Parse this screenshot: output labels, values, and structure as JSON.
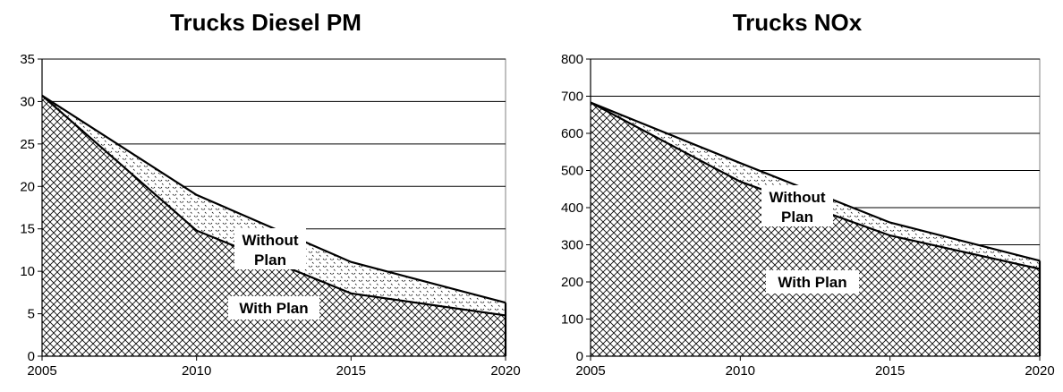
{
  "chart_data": [
    {
      "type": "area",
      "title": "Trucks Diesel PM",
      "x": [
        2005,
        2010,
        2015,
        2020
      ],
      "ylim": [
        0,
        35
      ],
      "yticks": [
        0,
        5,
        10,
        15,
        20,
        25,
        30,
        35
      ],
      "xticks": [
        "2005",
        "2010",
        "2015",
        "2020"
      ],
      "grid": true,
      "series": [
        {
          "name": "Without Plan",
          "values": [
            30.7,
            19.0,
            11.1,
            6.3
          ]
        },
        {
          "name": "With Plan",
          "values": [
            30.7,
            14.8,
            7.4,
            4.8
          ]
        }
      ],
      "annotations": [
        "Without",
        "Plan",
        "With Plan"
      ]
    },
    {
      "type": "area",
      "title": "Trucks NOx",
      "x": [
        2005,
        2010,
        2015,
        2020
      ],
      "ylim": [
        0,
        800
      ],
      "yticks": [
        0,
        100,
        200,
        300,
        400,
        500,
        600,
        700,
        800
      ],
      "xticks": [
        "2005",
        "2010",
        "2015",
        "2020"
      ],
      "grid": true,
      "series": [
        {
          "name": "Without Plan",
          "values": [
            683,
            520,
            360,
            257
          ]
        },
        {
          "name": "With Plan",
          "values": [
            683,
            470,
            325,
            235
          ]
        }
      ],
      "annotations": [
        "Without",
        "Plan",
        "With Plan"
      ]
    }
  ]
}
